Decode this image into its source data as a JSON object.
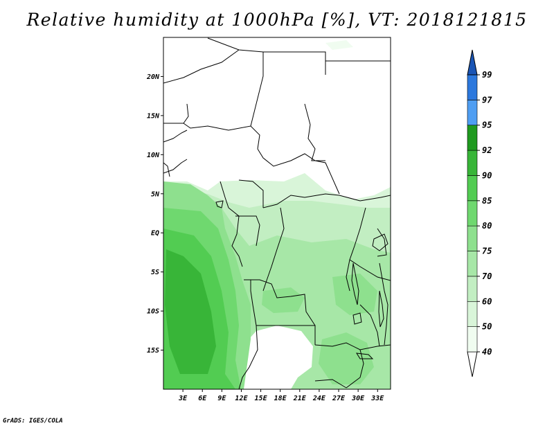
{
  "title": "Relative humidity at 1000hPa [%], VT: 2018121815",
  "credit": "GrADS: IGES/COLA",
  "map": {
    "lon_range": [
      0,
      35
    ],
    "lat_range": [
      -20,
      25
    ],
    "lat_ticks": [
      {
        "label": "20N",
        "value": 20
      },
      {
        "label": "15N",
        "value": 15
      },
      {
        "label": "10N",
        "value": 10
      },
      {
        "label": "5N",
        "value": 5
      },
      {
        "label": "EQ",
        "value": 0
      },
      {
        "label": "5S",
        "value": -5
      },
      {
        "label": "10S",
        "value": -10
      },
      {
        "label": "15S",
        "value": -15
      }
    ],
    "lon_ticks": [
      {
        "label": "3E",
        "value": 3
      },
      {
        "label": "6E",
        "value": 6
      },
      {
        "label": "9E",
        "value": 9
      },
      {
        "label": "12E",
        "value": 12
      },
      {
        "label": "15E",
        "value": 15
      },
      {
        "label": "18E",
        "value": 18
      },
      {
        "label": "21E",
        "value": 21
      },
      {
        "label": "24E",
        "value": 24
      },
      {
        "label": "27E",
        "value": 27
      },
      {
        "label": "30E",
        "value": 30
      },
      {
        "label": "33E",
        "value": 33
      }
    ]
  },
  "colorbar": {
    "levels": [
      {
        "label": "40",
        "value": 40,
        "color": "#f0fcf0"
      },
      {
        "label": "50",
        "value": 50,
        "color": "#d9f5d9"
      },
      {
        "label": "60",
        "value": 60,
        "color": "#c2eec2"
      },
      {
        "label": "70",
        "value": 70,
        "color": "#a7e7a7"
      },
      {
        "label": "75",
        "value": 75,
        "color": "#8ee08e"
      },
      {
        "label": "80",
        "value": 80,
        "color": "#6fd86f"
      },
      {
        "label": "85",
        "value": 85,
        "color": "#52cc52"
      },
      {
        "label": "90",
        "value": 90,
        "color": "#38b538"
      },
      {
        "label": "92",
        "value": 92,
        "color": "#1f9a1f"
      },
      {
        "label": "95",
        "value": 95,
        "color": "#4f9ef2"
      },
      {
        "label": "97",
        "value": 97,
        "color": "#2c78dd"
      },
      {
        "label": "99",
        "value": 99,
        "color": "#1a55b5"
      }
    ],
    "under_color": "#ffffff",
    "over_color": "#1a55b5"
  }
}
